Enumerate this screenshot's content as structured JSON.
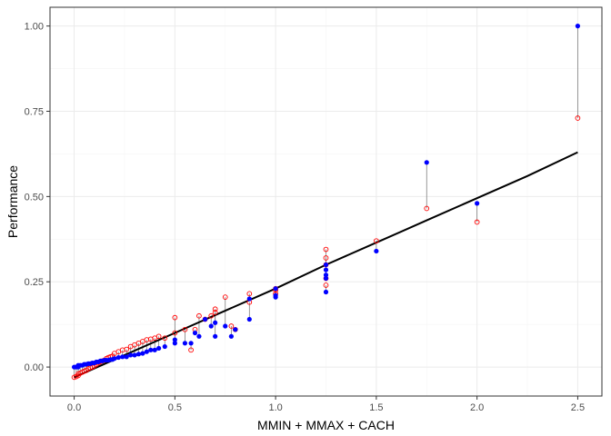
{
  "chart_data": {
    "type": "scatter",
    "title": "",
    "xlabel": "MMIN + MMAX + CACH",
    "ylabel": "Performance",
    "xlim": [
      -0.12,
      2.62
    ],
    "ylim": [
      -0.085,
      1.055
    ],
    "x_ticks": [
      0.0,
      0.5,
      1.0,
      1.5,
      2.0,
      2.5
    ],
    "x_tick_labels": [
      "0.0",
      "0.5",
      "1.0",
      "1.5",
      "2.0",
      "2.5"
    ],
    "y_ticks": [
      0.0,
      0.25,
      0.5,
      0.75,
      1.0
    ],
    "y_tick_labels": [
      "0.00",
      "0.25",
      "0.50",
      "0.75",
      "1.00"
    ],
    "grid": true,
    "legend": "none",
    "colors": {
      "actual": "#0000ff",
      "predicted": "#ff0000",
      "fit_line": "#000000",
      "residual_segment": "#7f7f7f",
      "panel_border": "#333333",
      "grid_major": "#ebebeb",
      "grid_minor": "#f5f5f5"
    },
    "series": [
      {
        "role": "actual (filled blue points)",
        "x": [
          0.0,
          0.01,
          0.02,
          0.02,
          0.03,
          0.04,
          0.05,
          0.06,
          0.07,
          0.08,
          0.09,
          0.1,
          0.11,
          0.12,
          0.13,
          0.14,
          0.15,
          0.16,
          0.17,
          0.18,
          0.19,
          0.2,
          0.22,
          0.24,
          0.26,
          0.28,
          0.3,
          0.32,
          0.34,
          0.36,
          0.38,
          0.4,
          0.42,
          0.45,
          0.5,
          0.5,
          0.55,
          0.58,
          0.6,
          0.62,
          0.65,
          0.68,
          0.7,
          0.7,
          0.75,
          0.78,
          0.8,
          0.87,
          0.87,
          1.0,
          1.0,
          1.0,
          1.25,
          1.25,
          1.25,
          1.25,
          1.25,
          1.5,
          1.75,
          2.0,
          2.5
        ],
        "y": [
          0.0,
          0.0,
          0.0,
          0.005,
          0.005,
          0.005,
          0.008,
          0.008,
          0.01,
          0.01,
          0.012,
          0.012,
          0.015,
          0.015,
          0.018,
          0.018,
          0.02,
          0.02,
          0.02,
          0.022,
          0.022,
          0.025,
          0.028,
          0.03,
          0.03,
          0.035,
          0.035,
          0.038,
          0.04,
          0.045,
          0.05,
          0.05,
          0.055,
          0.06,
          0.07,
          0.08,
          0.07,
          0.07,
          0.1,
          0.09,
          0.14,
          0.12,
          0.09,
          0.13,
          0.12,
          0.09,
          0.11,
          0.14,
          0.2,
          0.205,
          0.21,
          0.23,
          0.22,
          0.26,
          0.27,
          0.285,
          0.3,
          0.34,
          0.6,
          0.48,
          1.0
        ]
      },
      {
        "role": "predicted (open red circles)",
        "x": [
          0.0,
          0.01,
          0.02,
          0.02,
          0.03,
          0.04,
          0.05,
          0.06,
          0.07,
          0.08,
          0.09,
          0.1,
          0.11,
          0.12,
          0.13,
          0.14,
          0.15,
          0.16,
          0.17,
          0.18,
          0.19,
          0.2,
          0.22,
          0.24,
          0.26,
          0.28,
          0.3,
          0.32,
          0.34,
          0.36,
          0.38,
          0.4,
          0.42,
          0.45,
          0.5,
          0.5,
          0.55,
          0.58,
          0.6,
          0.62,
          0.65,
          0.68,
          0.7,
          0.7,
          0.75,
          0.78,
          0.8,
          0.87,
          0.87,
          1.0,
          1.0,
          1.0,
          1.25,
          1.25,
          1.25,
          1.25,
          1.25,
          1.5,
          1.75,
          2.0,
          2.5
        ],
        "y": [
          -0.03,
          -0.028,
          -0.025,
          -0.02,
          -0.018,
          -0.015,
          -0.012,
          -0.01,
          -0.005,
          -0.002,
          0.0,
          0.003,
          0.008,
          0.012,
          0.015,
          0.018,
          0.02,
          0.025,
          0.028,
          0.03,
          0.032,
          0.04,
          0.045,
          0.05,
          0.052,
          0.06,
          0.065,
          0.07,
          0.075,
          0.08,
          0.082,
          0.085,
          0.09,
          0.085,
          0.145,
          0.1,
          0.11,
          0.05,
          0.11,
          0.15,
          0.14,
          0.15,
          0.17,
          0.16,
          0.205,
          0.12,
          0.11,
          0.19,
          0.215,
          0.23,
          0.225,
          0.215,
          0.24,
          0.26,
          0.3,
          0.32,
          0.345,
          0.37,
          0.465,
          0.425,
          0.73
        ]
      },
      {
        "role": "fitted line",
        "x": [
          0.0,
          0.25,
          0.5,
          0.75,
          1.0,
          1.25,
          1.5,
          1.75,
          2.0,
          2.25,
          2.5
        ],
        "y": [
          -0.03,
          0.035,
          0.1,
          0.165,
          0.23,
          0.3,
          0.365,
          0.43,
          0.495,
          0.56,
          0.63
        ]
      }
    ]
  }
}
